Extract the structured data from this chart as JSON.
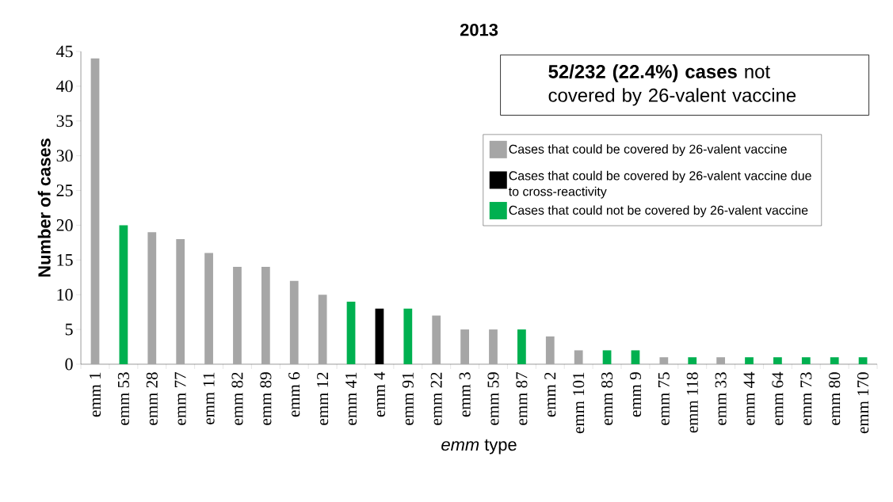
{
  "chart_data": {
    "type": "bar",
    "title": "2013",
    "xlabel": "*emm* type",
    "ylabel": "Number of cases",
    "categories": [
      "emm 1",
      "emm 53",
      "emm 28",
      "emm 77",
      "emm 11",
      "emm 82",
      "emm 89",
      "emm 6",
      "emm 12",
      "emm 41",
      "emm 4",
      "emm 91",
      "emm 22",
      "emm 3",
      "emm 59",
      "emm 87",
      "emm 2",
      "emm 101",
      "emm 83",
      "emm 9",
      "emm 75",
      "emm 118",
      "emm 33",
      "emm 44",
      "emm 64",
      "emm 73",
      "emm 80",
      "emm 170"
    ],
    "series": [
      {
        "name": "Cases that could be covered by 26-valent vaccine",
        "color": "#a6a6a6",
        "values": [
          44,
          null,
          19,
          18,
          16,
          14,
          14,
          12,
          10,
          null,
          null,
          null,
          7,
          5,
          5,
          null,
          4,
          2,
          null,
          null,
          1,
          null,
          1,
          null,
          null,
          null,
          null,
          null
        ]
      },
      {
        "name": "Cases that could be covered by 26-valent vaccine due to cross-reactivity",
        "color": "#000000",
        "values": [
          null,
          null,
          null,
          null,
          null,
          null,
          null,
          null,
          null,
          null,
          8,
          null,
          null,
          null,
          null,
          null,
          null,
          null,
          null,
          null,
          null,
          null,
          null,
          null,
          null,
          null,
          null,
          null
        ]
      },
      {
        "name": "Cases that could not be covered by 26-valent vaccine",
        "color": "#00b050",
        "values": [
          null,
          20,
          null,
          null,
          null,
          null,
          null,
          null,
          null,
          9,
          null,
          8,
          null,
          null,
          null,
          5,
          null,
          null,
          2,
          2,
          null,
          1,
          null,
          1,
          1,
          1,
          1,
          1
        ]
      }
    ],
    "ylim": [
      0,
      45
    ],
    "yticks": [
      0,
      5,
      10,
      15,
      20,
      25,
      30,
      35,
      40,
      45
    ],
    "legend": "right",
    "annotations": [
      "**52/232 (22.4%) cases** not covered by 26-valent vaccine"
    ]
  }
}
